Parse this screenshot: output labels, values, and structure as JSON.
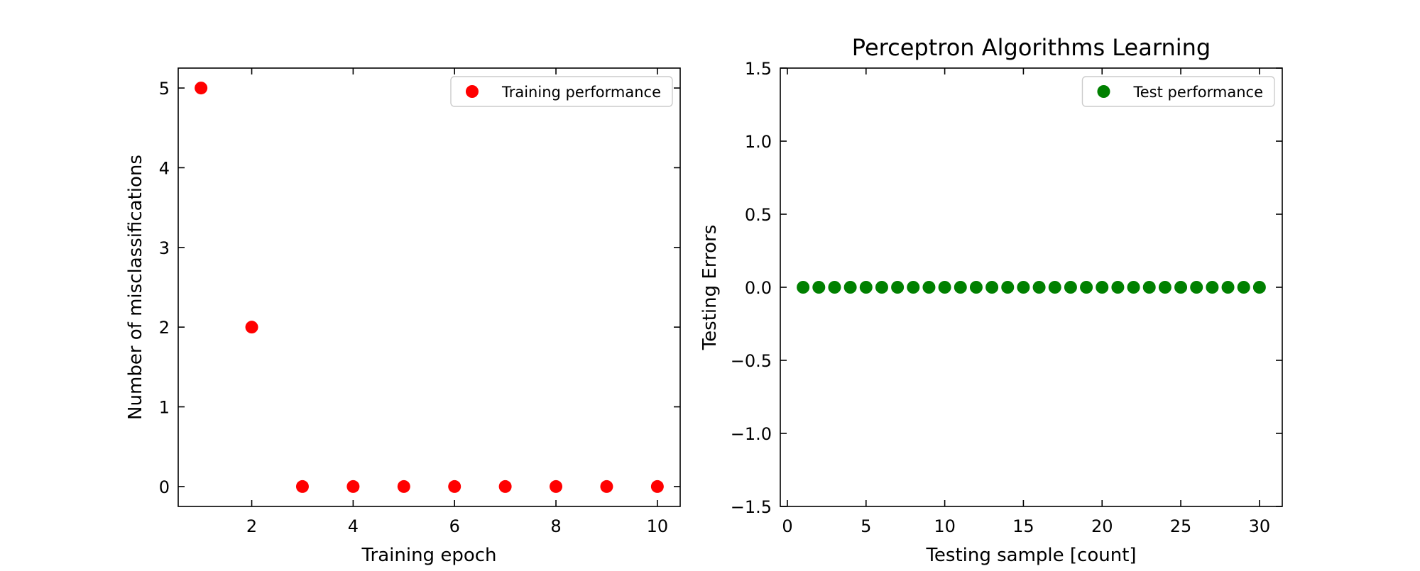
{
  "chart_data": [
    {
      "type": "scatter",
      "title": "",
      "xlabel": "Training epoch",
      "ylabel": "Number of misclassifications",
      "xlim": [
        0.55,
        10.45
      ],
      "ylim": [
        -0.25,
        5.25
      ],
      "xticks": [
        2,
        4,
        6,
        8,
        10
      ],
      "xtick_labels": [
        "2",
        "4",
        "6",
        "8",
        "10"
      ],
      "yticks": [
        0,
        1,
        2,
        3,
        4,
        5
      ],
      "ytick_labels": [
        "0",
        "1",
        "2",
        "3",
        "4",
        "5"
      ],
      "grid": false,
      "legend_position": "top-right",
      "series": [
        {
          "name": "Training performance",
          "color": "#ff0000",
          "x": [
            1,
            2,
            3,
            4,
            5,
            6,
            7,
            8,
            9,
            10
          ],
          "y": [
            5,
            2,
            0,
            0,
            0,
            0,
            0,
            0,
            0,
            0
          ]
        }
      ]
    },
    {
      "type": "scatter",
      "title": "Perceptron Algorithms Learning",
      "xlabel": "Testing sample [count]",
      "ylabel": "Testing Errors",
      "xlim": [
        -0.45,
        31.45
      ],
      "ylim": [
        -1.5,
        1.5
      ],
      "xticks": [
        0,
        5,
        10,
        15,
        20,
        25,
        30
      ],
      "xtick_labels": [
        "0",
        "5",
        "10",
        "15",
        "20",
        "25",
        "30"
      ],
      "yticks": [
        -1.5,
        -1.0,
        -0.5,
        0.0,
        0.5,
        1.0,
        1.5
      ],
      "ytick_labels": [
        "−1.5",
        "−1.0",
        "−0.5",
        "0.0",
        "0.5",
        "1.0",
        "1.5"
      ],
      "grid": false,
      "legend_position": "top-right",
      "series": [
        {
          "name": "Test performance",
          "color": "#008000",
          "x": [
            1,
            2,
            3,
            4,
            5,
            6,
            7,
            8,
            9,
            10,
            11,
            12,
            13,
            14,
            15,
            16,
            17,
            18,
            19,
            20,
            21,
            22,
            23,
            24,
            25,
            26,
            27,
            28,
            29,
            30
          ],
          "y": [
            0,
            0,
            0,
            0,
            0,
            0,
            0,
            0,
            0,
            0,
            0,
            0,
            0,
            0,
            0,
            0,
            0,
            0,
            0,
            0,
            0,
            0,
            0,
            0,
            0,
            0,
            0,
            0,
            0,
            0
          ]
        }
      ]
    }
  ]
}
